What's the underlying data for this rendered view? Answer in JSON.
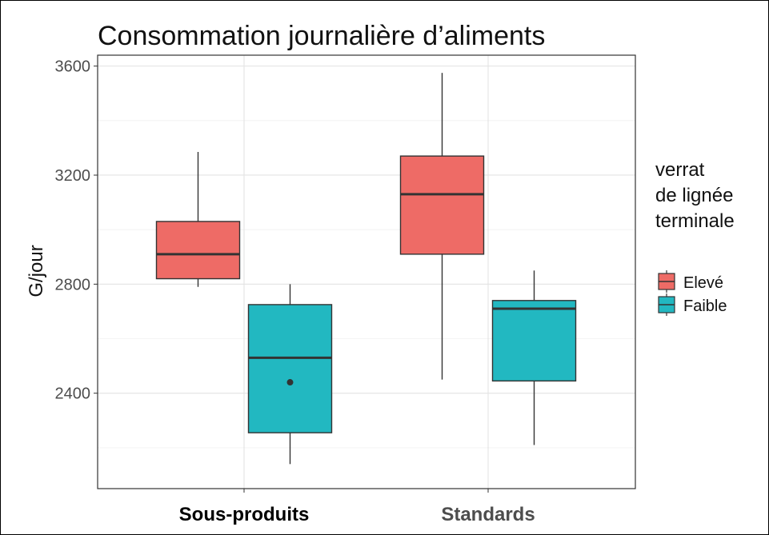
{
  "chart_data": {
    "type": "box",
    "title": "Consommation journalière d’aliments",
    "xlabel": "",
    "ylabel": "G/jour",
    "ylim": [
      2050,
      3640
    ],
    "yticks": [
      2400,
      2800,
      3200,
      3600
    ],
    "categories": [
      "Sous-produits",
      "Standards"
    ],
    "legend": {
      "title": [
        "verrat",
        "de lignée",
        "terminale"
      ],
      "position": "right"
    },
    "grid": true,
    "series": [
      {
        "name": "Elevé",
        "color": "#ee6b66",
        "boxes": [
          {
            "category": "Sous-produits",
            "min": 2790,
            "q1": 2820,
            "median": 2910,
            "q3": 3030,
            "max": 3285,
            "outliers": []
          },
          {
            "category": "Standards",
            "min": 2450,
            "q1": 2910,
            "median": 3130,
            "q3": 3270,
            "max": 3575,
            "outliers": []
          }
        ]
      },
      {
        "name": "Faible",
        "color": "#22b8c1",
        "boxes": [
          {
            "category": "Sous-produits",
            "min": 2140,
            "q1": 2255,
            "median": 2530,
            "q3": 2725,
            "max": 2800,
            "outliers": [
              2440
            ]
          },
          {
            "category": "Standards",
            "min": 2210,
            "q1": 2445,
            "median": 2710,
            "q3": 2740,
            "max": 2850,
            "outliers": []
          }
        ]
      }
    ]
  }
}
